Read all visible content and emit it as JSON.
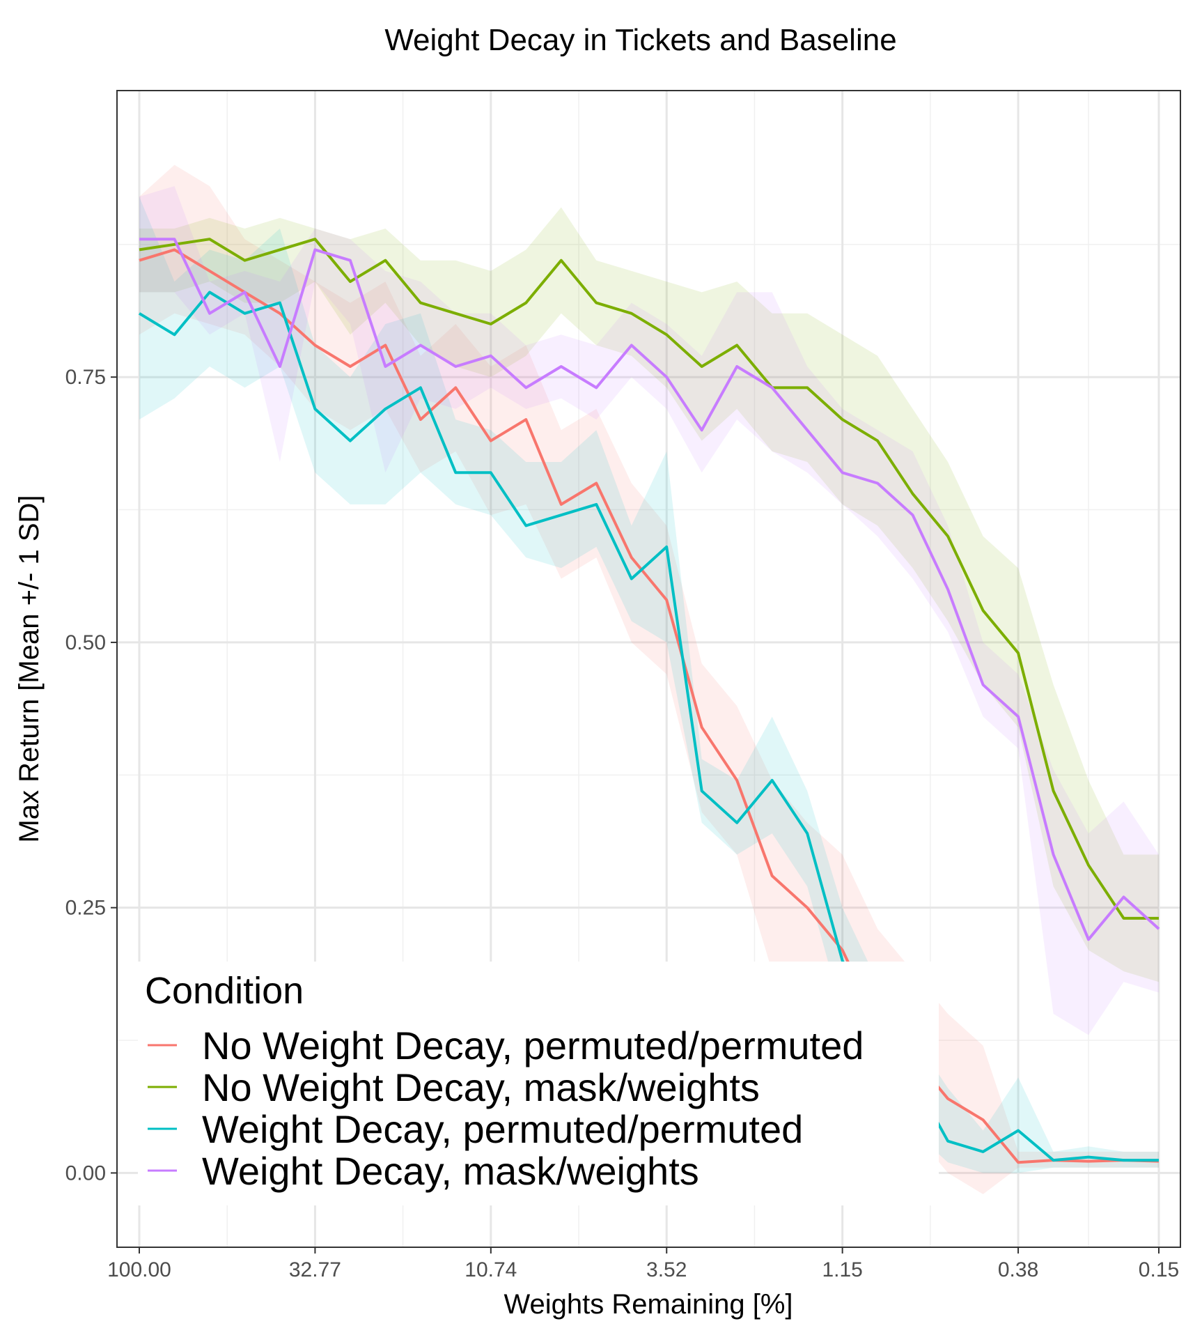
{
  "chart_data": {
    "type": "line",
    "title": "Weight Decay in Tickets and Baseline",
    "xlabel": "Weights Remaining [%]",
    "ylabel": "Max Return [Mean +/- 1 SD]",
    "x_scale": "log",
    "x": [
      100.0,
      80.0,
      64.0,
      51.2,
      40.96,
      32.77,
      26.21,
      20.97,
      16.78,
      13.42,
      10.74,
      8.59,
      6.87,
      5.5,
      4.4,
      3.52,
      2.81,
      2.25,
      1.8,
      1.44,
      1.15,
      0.92,
      0.74,
      0.59,
      0.47,
      0.38,
      0.3,
      0.24,
      0.19,
      0.15
    ],
    "x_ticks": [
      100.0,
      32.77,
      10.74,
      3.52,
      1.15,
      0.38,
      0.15
    ],
    "x_tick_labels": [
      "100.00",
      "32.77",
      "10.74",
      "3.52",
      "1.15",
      "0.38",
      "0.15"
    ],
    "y_ticks": [
      0.0,
      0.25,
      0.5,
      0.75
    ],
    "y_tick_labels": [
      "0.00",
      "0.25",
      "0.50",
      "0.75"
    ],
    "ylim": [
      -0.07,
      1.02
    ],
    "grid": true,
    "legend_title": "Condition",
    "legend_position": "bottom-left inside",
    "series": [
      {
        "name": "No Weight Decay, permuted/permuted",
        "color": "#F8766D",
        "values": [
          0.86,
          0.87,
          0.85,
          0.83,
          0.81,
          0.78,
          0.76,
          0.78,
          0.71,
          0.74,
          0.69,
          0.71,
          0.63,
          0.65,
          0.58,
          0.54,
          0.42,
          0.37,
          0.28,
          0.25,
          0.21,
          0.14,
          0.11,
          0.07,
          0.05,
          0.01,
          0.012,
          0.011,
          0.012,
          0.011
        ],
        "lower": [
          0.79,
          0.81,
          0.8,
          0.79,
          0.76,
          0.72,
          0.7,
          0.72,
          0.66,
          0.68,
          0.62,
          0.63,
          0.56,
          0.58,
          0.5,
          0.47,
          0.34,
          0.3,
          0.19,
          0.16,
          0.12,
          0.06,
          0.04,
          0.0,
          -0.02,
          0.005,
          0.005,
          0.005,
          0.005,
          0.005
        ],
        "upper": [
          0.92,
          0.95,
          0.93,
          0.88,
          0.86,
          0.84,
          0.82,
          0.84,
          0.77,
          0.8,
          0.76,
          0.78,
          0.7,
          0.72,
          0.65,
          0.61,
          0.48,
          0.44,
          0.37,
          0.33,
          0.3,
          0.23,
          0.19,
          0.15,
          0.12,
          0.02,
          0.02,
          0.02,
          0.02,
          0.02
        ]
      },
      {
        "name": "No Weight Decay, mask/weights",
        "color": "#7CAE00",
        "values": [
          0.87,
          0.875,
          0.88,
          0.86,
          0.87,
          0.88,
          0.84,
          0.86,
          0.82,
          0.81,
          0.8,
          0.82,
          0.86,
          0.82,
          0.81,
          0.79,
          0.76,
          0.78,
          0.74,
          0.74,
          0.71,
          0.69,
          0.64,
          0.6,
          0.53,
          0.49,
          0.36,
          0.29,
          0.24,
          0.24
        ],
        "lower": [
          0.83,
          0.83,
          0.84,
          0.82,
          0.82,
          0.84,
          0.79,
          0.82,
          0.78,
          0.76,
          0.75,
          0.77,
          0.81,
          0.78,
          0.77,
          0.74,
          0.69,
          0.72,
          0.68,
          0.67,
          0.63,
          0.61,
          0.57,
          0.52,
          0.46,
          0.42,
          0.27,
          0.21,
          0.19,
          0.18
        ],
        "upper": [
          0.89,
          0.89,
          0.9,
          0.89,
          0.9,
          0.89,
          0.88,
          0.89,
          0.86,
          0.86,
          0.85,
          0.87,
          0.91,
          0.86,
          0.85,
          0.84,
          0.83,
          0.84,
          0.81,
          0.81,
          0.79,
          0.77,
          0.72,
          0.67,
          0.6,
          0.57,
          0.46,
          0.37,
          0.3,
          0.3
        ]
      },
      {
        "name": "Weight Decay, permuted/permuted",
        "color": "#00BFC4",
        "values": [
          0.81,
          0.79,
          0.83,
          0.81,
          0.82,
          0.72,
          0.69,
          0.72,
          0.74,
          0.66,
          0.66,
          0.61,
          0.62,
          0.63,
          0.56,
          0.59,
          0.36,
          0.33,
          0.37,
          0.32,
          0.2,
          0.13,
          0.09,
          0.03,
          0.02,
          0.04,
          0.012,
          0.015,
          0.012,
          0.012
        ],
        "lower": [
          0.71,
          0.73,
          0.76,
          0.74,
          0.76,
          0.66,
          0.63,
          0.63,
          0.66,
          0.63,
          0.62,
          0.58,
          0.57,
          0.59,
          0.52,
          0.5,
          0.33,
          0.3,
          0.32,
          0.27,
          0.15,
          0.09,
          0.04,
          0.01,
          0.0,
          0.0,
          0.005,
          0.005,
          0.005,
          0.005
        ],
        "upper": [
          0.92,
          0.84,
          0.87,
          0.86,
          0.89,
          0.78,
          0.75,
          0.8,
          0.81,
          0.71,
          0.7,
          0.67,
          0.67,
          0.7,
          0.61,
          0.68,
          0.39,
          0.37,
          0.43,
          0.36,
          0.25,
          0.18,
          0.13,
          0.08,
          0.04,
          0.09,
          0.02,
          0.025,
          0.02,
          0.02
        ]
      },
      {
        "name": "Weight Decay, mask/weights",
        "color": "#C77CFF",
        "values": [
          0.88,
          0.88,
          0.81,
          0.83,
          0.76,
          0.87,
          0.86,
          0.76,
          0.78,
          0.76,
          0.77,
          0.74,
          0.76,
          0.74,
          0.78,
          0.75,
          0.7,
          0.76,
          0.74,
          0.7,
          0.66,
          0.65,
          0.62,
          0.55,
          0.46,
          0.43,
          0.3,
          0.22,
          0.26,
          0.23
        ],
        "lower": [
          0.83,
          0.83,
          0.79,
          0.81,
          0.67,
          0.84,
          0.8,
          0.66,
          0.73,
          0.72,
          0.74,
          0.72,
          0.73,
          0.71,
          0.75,
          0.72,
          0.66,
          0.71,
          0.68,
          0.66,
          0.63,
          0.6,
          0.56,
          0.51,
          0.43,
          0.4,
          0.15,
          0.13,
          0.18,
          0.17
        ],
        "upper": [
          0.92,
          0.93,
          0.84,
          0.85,
          0.84,
          0.89,
          0.88,
          0.85,
          0.84,
          0.81,
          0.81,
          0.78,
          0.79,
          0.78,
          0.82,
          0.8,
          0.77,
          0.83,
          0.83,
          0.76,
          0.72,
          0.7,
          0.68,
          0.61,
          0.5,
          0.47,
          0.38,
          0.32,
          0.35,
          0.3
        ]
      }
    ]
  }
}
